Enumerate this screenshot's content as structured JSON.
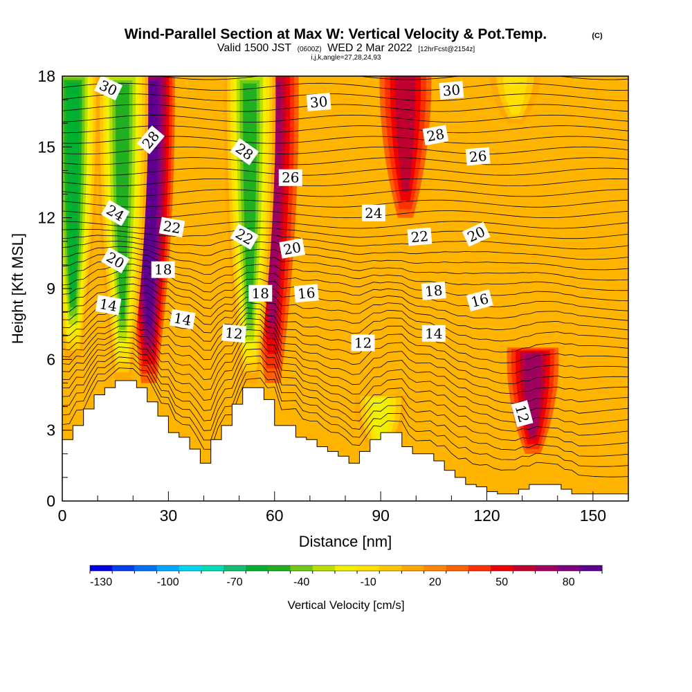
{
  "chart_data": {
    "type": "heatmap",
    "title": "Wind-Parallel Section at Max W: Vertical Velocity & Pot.Temp.",
    "title_suffix": "(C)",
    "subtitle_prefix": "Valid 1500 JST",
    "subtitle_zulu": "(0600Z)",
    "subtitle_date": "WED 2 Mar 2022",
    "subtitle_forecast": "[12hrFcst@2154z]",
    "subtitle_indices": "i,j,k,angle=27,28,24,93",
    "xlabel": "Distance [nm]",
    "ylabel": "Height [Kft MSL]",
    "xlim": [
      0,
      160
    ],
    "ylim": [
      0,
      18
    ],
    "xticks": [
      "0",
      "30",
      "60",
      "90",
      "120",
      "150"
    ],
    "yticks": [
      "0",
      "3",
      "6",
      "9",
      "12",
      "15",
      "18"
    ],
    "colorbar": {
      "title": "Vertical Velocity [cm/s]",
      "tick_labels": [
        "-130",
        "-100",
        "-70",
        "-40",
        "-10",
        "20",
        "50",
        "80"
      ],
      "colors": [
        "#0000e0",
        "#0040f0",
        "#0070f8",
        "#00a8ff",
        "#00d8f0",
        "#00e0b8",
        "#10c070",
        "#00b030",
        "#20b020",
        "#70c818",
        "#b8e000",
        "#f0f000",
        "#ffe000",
        "#ffc800",
        "#ffa800",
        "#ff8800",
        "#ff6000",
        "#ff3000",
        "#f00000",
        "#c00030",
        "#a00060",
        "#800080",
        "#600090"
      ]
    },
    "terrain_x": [
      0,
      3,
      6,
      9,
      12,
      15,
      18,
      21,
      24,
      27,
      30,
      33,
      36,
      39,
      42,
      45,
      48,
      51,
      54,
      57,
      60,
      63,
      66,
      69,
      72,
      75,
      78,
      81,
      84,
      87,
      90,
      93,
      96,
      99,
      102,
      105,
      108,
      111,
      114,
      117,
      120,
      123,
      126,
      129,
      132,
      135,
      138,
      141,
      144,
      147,
      150,
      153,
      156,
      159,
      160
    ],
    "terrain_height_kft": [
      2.6,
      3.2,
      3.9,
      4.5,
      4.8,
      5.1,
      5.1,
      4.8,
      4.2,
      3.6,
      2.9,
      2.7,
      2.2,
      1.6,
      2.6,
      3.2,
      4.1,
      4.8,
      4.8,
      4.3,
      3.2,
      3.2,
      2.7,
      2.6,
      2.3,
      2.1,
      1.9,
      1.6,
      2.1,
      2.6,
      2.9,
      2.9,
      2.3,
      2.0,
      2.0,
      1.7,
      1.3,
      1.0,
      0.7,
      0.6,
      0.4,
      0.3,
      0.3,
      0.5,
      0.7,
      0.7,
      0.7,
      0.5,
      0.3,
      0.3,
      0.3,
      0.3,
      0.3,
      0.3,
      0.3
    ],
    "updraft_bands": [
      {
        "name": "updraft",
        "x_center": 24.5,
        "max_w_cms": 80,
        "alt_range_kft": [
          5,
          18
        ]
      },
      {
        "name": "updraft",
        "x_center": 59.5,
        "max_w_cms": 55,
        "alt_range_kft": [
          5,
          18
        ]
      },
      {
        "name": "updraft",
        "x_center": 97,
        "max_w_cms": 45,
        "alt_range_kft": [
          12,
          18
        ]
      },
      {
        "name": "updraft",
        "x_center": 133,
        "max_w_cms": 50,
        "alt_range_kft": [
          2,
          6
        ]
      }
    ],
    "downdraft_bands": [
      {
        "name": "downdraft",
        "x_center": 3,
        "min_w_cms": -85,
        "alt_range_kft": [
          6,
          18
        ]
      },
      {
        "name": "downdraft",
        "x_center": 17,
        "min_w_cms": -70,
        "alt_range_kft": [
          5,
          18
        ]
      },
      {
        "name": "downdraft",
        "x_center": 53,
        "min_w_cms": -75,
        "alt_range_kft": [
          5,
          18
        ]
      },
      {
        "name": "downdraft",
        "x_center": 90,
        "min_w_cms": -40,
        "alt_range_kft": [
          2,
          4
        ]
      },
      {
        "name": "downdraft",
        "x_center": 128,
        "min_w_cms": -35,
        "alt_range_kft": [
          16,
          18
        ]
      }
    ],
    "pot_temp_contour_labels": [
      {
        "text": "30",
        "x": 13,
        "y": 17.5,
        "rotation": 25
      },
      {
        "text": "28",
        "x": 25,
        "y": 15.3,
        "rotation": -50
      },
      {
        "text": "24",
        "x": 15,
        "y": 12.2,
        "rotation": 30
      },
      {
        "text": "20",
        "x": 15,
        "y": 10.2,
        "rotation": 30
      },
      {
        "text": "14",
        "x": 13,
        "y": 8.3,
        "rotation": 10
      },
      {
        "text": "22",
        "x": 31,
        "y": 11.6,
        "rotation": 10
      },
      {
        "text": "18",
        "x": 28.5,
        "y": 9.8,
        "rotation": 0
      },
      {
        "text": "14",
        "x": 34,
        "y": 7.7,
        "rotation": 10
      },
      {
        "text": "28",
        "x": 51.5,
        "y": 14.8,
        "rotation": 35
      },
      {
        "text": "22",
        "x": 51.5,
        "y": 11.2,
        "rotation": 30
      },
      {
        "text": "18",
        "x": 56,
        "y": 8.8,
        "rotation": 0
      },
      {
        "text": "12",
        "x": 48.5,
        "y": 7.1,
        "rotation": 5
      },
      {
        "text": "26",
        "x": 64.5,
        "y": 13.7,
        "rotation": 0
      },
      {
        "text": "20",
        "x": 65,
        "y": 10.7,
        "rotation": -10
      },
      {
        "text": "16",
        "x": 69,
        "y": 8.8,
        "rotation": -5
      },
      {
        "text": "30",
        "x": 72.5,
        "y": 16.9,
        "rotation": -5
      },
      {
        "text": "24",
        "x": 88,
        "y": 12.2,
        "rotation": 0
      },
      {
        "text": "12",
        "x": 85,
        "y": 6.7,
        "rotation": 0
      },
      {
        "text": "30",
        "x": 110,
        "y": 17.4,
        "rotation": -5
      },
      {
        "text": "28",
        "x": 105.5,
        "y": 15.5,
        "rotation": -10
      },
      {
        "text": "26",
        "x": 117.5,
        "y": 14.6,
        "rotation": -5
      },
      {
        "text": "22",
        "x": 101,
        "y": 11.2,
        "rotation": -5
      },
      {
        "text": "20",
        "x": 117,
        "y": 11.3,
        "rotation": -25
      },
      {
        "text": "18",
        "x": 105,
        "y": 8.9,
        "rotation": -5
      },
      {
        "text": "16",
        "x": 118,
        "y": 8.5,
        "rotation": -15
      },
      {
        "text": "14",
        "x": 105,
        "y": 7.1,
        "rotation": 0
      },
      {
        "text": "12",
        "x": 130,
        "y": 3.7,
        "rotation": 75
      }
    ]
  }
}
